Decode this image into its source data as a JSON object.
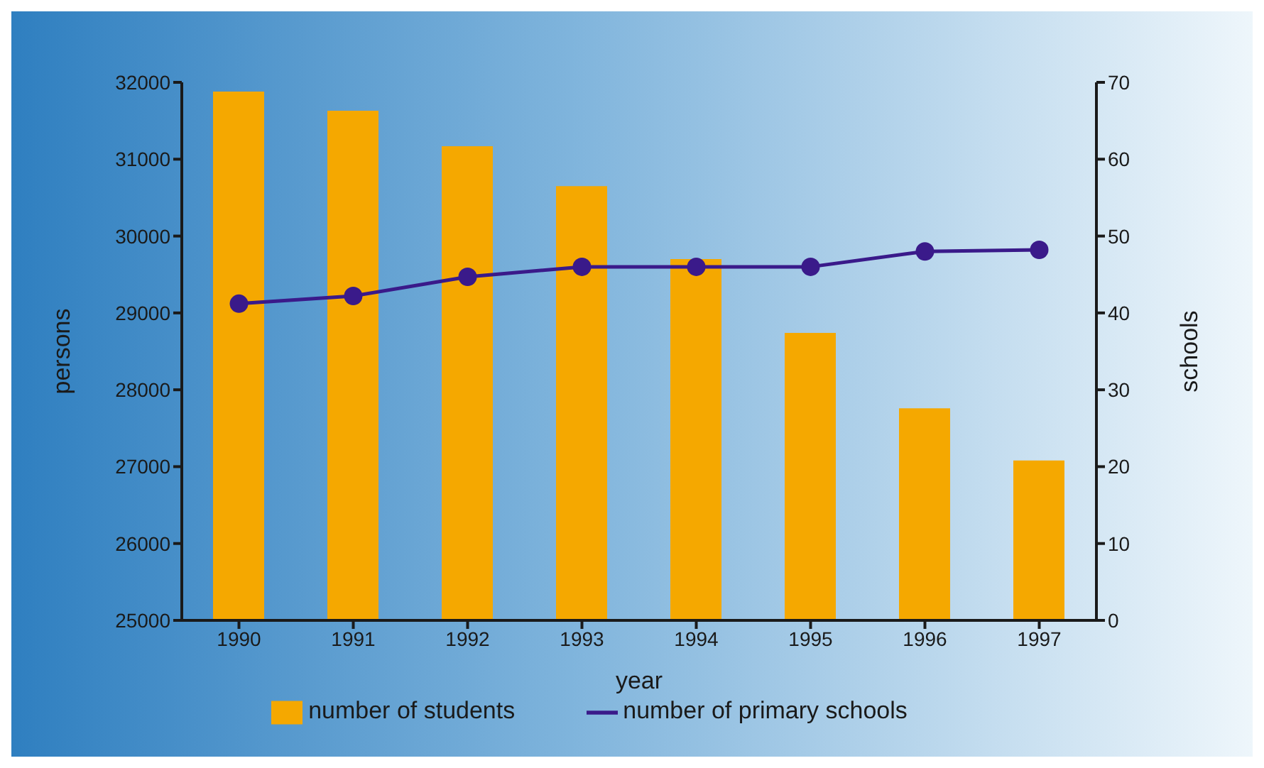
{
  "chart_data": {
    "type": "bar",
    "xlabel": "year",
    "ylabel": "persons",
    "y2label": "schools",
    "categories": [
      "1990",
      "1991",
      "1992",
      "1993",
      "1994",
      "1995",
      "1996",
      "1997"
    ],
    "series": [
      {
        "name": "number of students",
        "color": "#f5a800",
        "values": [
          31880,
          31630,
          31170,
          30650,
          29700,
          28740,
          27760,
          27080
        ]
      },
      {
        "name": "number of primary schools",
        "type": "line",
        "axis": "y2",
        "color": "#3a1a8a",
        "values": [
          41.2,
          42.2,
          44.7,
          46,
          46,
          46,
          48,
          48.2
        ]
      }
    ],
    "ylim": [
      25000,
      32000
    ],
    "yticks": [
      25000,
      26000,
      27000,
      28000,
      29000,
      30000,
      31000,
      32000
    ],
    "y2lim": [
      0,
      70
    ],
    "y2ticks": [
      0,
      10,
      20,
      30,
      40,
      50,
      60,
      70
    ],
    "legend": "bottom",
    "marker": "circle",
    "line_style": "solid"
  }
}
